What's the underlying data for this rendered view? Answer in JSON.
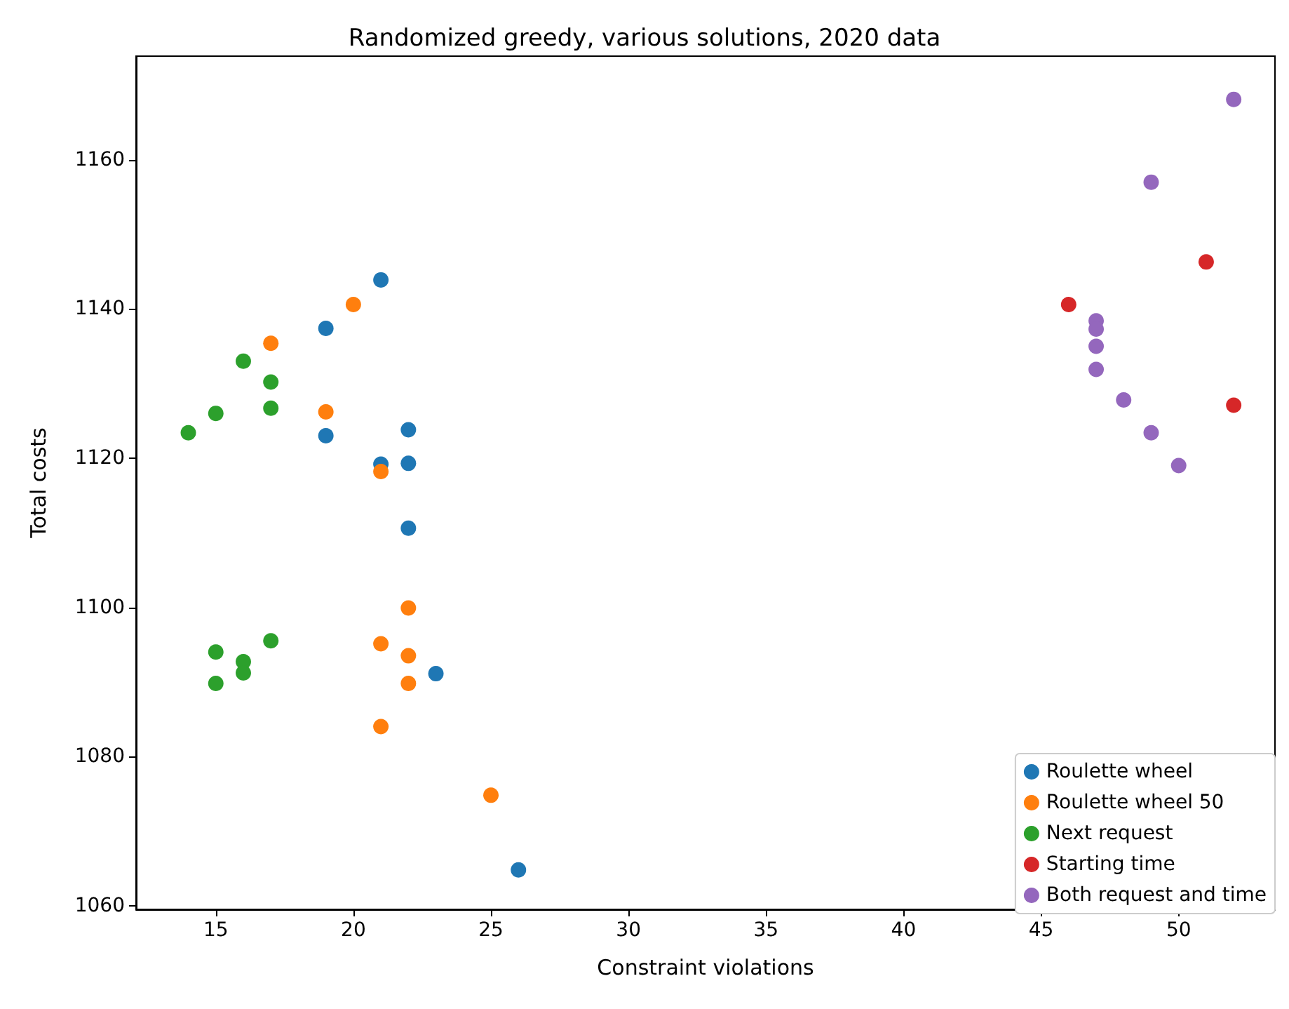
{
  "chart_data": {
    "type": "scatter",
    "title": "Randomized greedy, various solutions, 2020 data",
    "xlabel": "Constraint violations",
    "ylabel": "Total costs",
    "series": [
      {
        "name": "Roulette wheel",
        "color": "#1f77b4",
        "x": [
          21,
          19,
          19,
          21,
          22,
          22,
          22,
          23,
          26
        ],
        "values": [
          1143.9,
          1137.4,
          1123.0,
          1119.2,
          1123.8,
          1119.3,
          1110.6,
          1091.1,
          1064.8
        ]
      },
      {
        "name": "Roulette wheel 50",
        "color": "#ff7f0e",
        "x": [
          20,
          17,
          19,
          21,
          22,
          21,
          22,
          22,
          21,
          25
        ],
        "values": [
          1140.6,
          1135.4,
          1126.2,
          1118.2,
          1099.9,
          1095.1,
          1093.5,
          1089.8,
          1084.0,
          1074.8
        ]
      },
      {
        "name": "Next request",
        "color": "#2ca02c",
        "x": [
          16,
          17,
          17,
          15,
          14,
          17,
          15,
          16,
          16,
          15
        ],
        "values": [
          1133.0,
          1130.2,
          1126.7,
          1126.0,
          1123.4,
          1095.5,
          1094.0,
          1092.7,
          1091.2,
          1089.8
        ]
      },
      {
        "name": "Starting time",
        "color": "#d62728",
        "x": [
          46,
          51,
          52
        ],
        "values": [
          1140.6,
          1146.3,
          1127.1
        ]
      },
      {
        "name": "Both request and time",
        "color": "#9467bd",
        "x": [
          52,
          49,
          47,
          47,
          47,
          47,
          48,
          49,
          50
        ],
        "values": [
          1168.1,
          1157.0,
          1138.4,
          1137.3,
          1135.0,
          1131.9,
          1127.8,
          1123.4,
          1119.0
        ]
      }
    ],
    "xlim": [
      12.1,
      53.5
    ],
    "xticks": [
      15,
      20,
      25,
      30,
      35,
      40,
      45,
      50
    ],
    "ylim": [
      1059.5,
      1173.9
    ],
    "yticks": [
      1060,
      1080,
      1100,
      1120,
      1140,
      1160
    ],
    "grid": false,
    "legend": "bottom right",
    "marker": "circle"
  }
}
